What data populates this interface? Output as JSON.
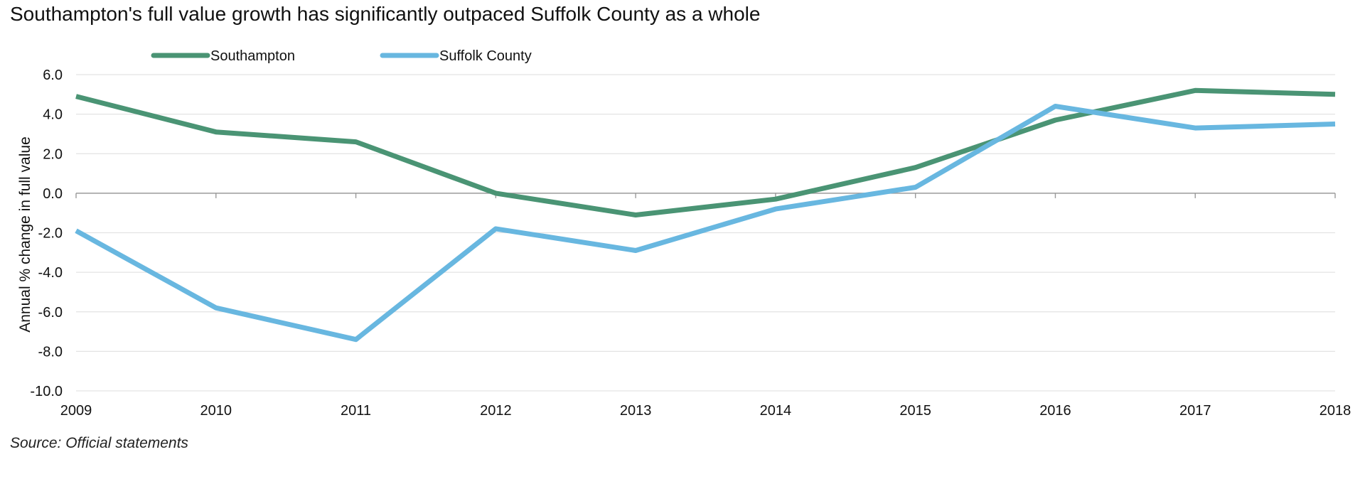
{
  "chart_data": {
    "type": "line",
    "title": "Southampton's full value growth has significantly outpaced Suffolk County as a whole",
    "source": "Source: Official statements",
    "ylabel": "Annual % change in full value",
    "xlabel": "",
    "x": [
      "2009",
      "2010",
      "2011",
      "2012",
      "2013",
      "2014",
      "2015",
      "2016",
      "2017",
      "2018"
    ],
    "ylim": [
      -10,
      6
    ],
    "yticks": [
      "6.0",
      "4.0",
      "2.0",
      "0.0",
      "-2.0",
      "-4.0",
      "-6.0",
      "-8.0",
      "-10.0"
    ],
    "ytick_values": [
      6,
      4,
      2,
      0,
      -2,
      -4,
      -6,
      -8,
      -10
    ],
    "grid": true,
    "legend_position": "top-left",
    "series": [
      {
        "name": "Southampton",
        "color": "#4a9474",
        "values": [
          4.9,
          3.1,
          2.6,
          0.0,
          -1.1,
          -0.3,
          1.3,
          3.7,
          5.2,
          5.0
        ]
      },
      {
        "name": "Suffolk County",
        "color": "#68b7e0",
        "values": [
          -1.9,
          -5.8,
          -7.4,
          -1.8,
          -2.9,
          -0.8,
          0.3,
          4.4,
          3.3,
          3.5
        ]
      }
    ]
  }
}
